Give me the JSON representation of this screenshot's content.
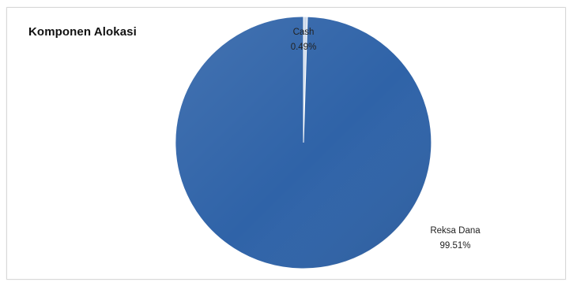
{
  "chart_data": {
    "type": "pie",
    "title": "Komponen Alokasi",
    "slices": [
      {
        "label": "Cash",
        "percent_label": "0.49%",
        "value": 0.49,
        "color": "#c9d7ea"
      },
      {
        "label": "Reksa Dana",
        "percent_label": "99.51%",
        "value": 99.51,
        "color": "#2f63a8"
      }
    ],
    "start_angle_deg": 0,
    "legend": "none",
    "labels": "outside"
  }
}
